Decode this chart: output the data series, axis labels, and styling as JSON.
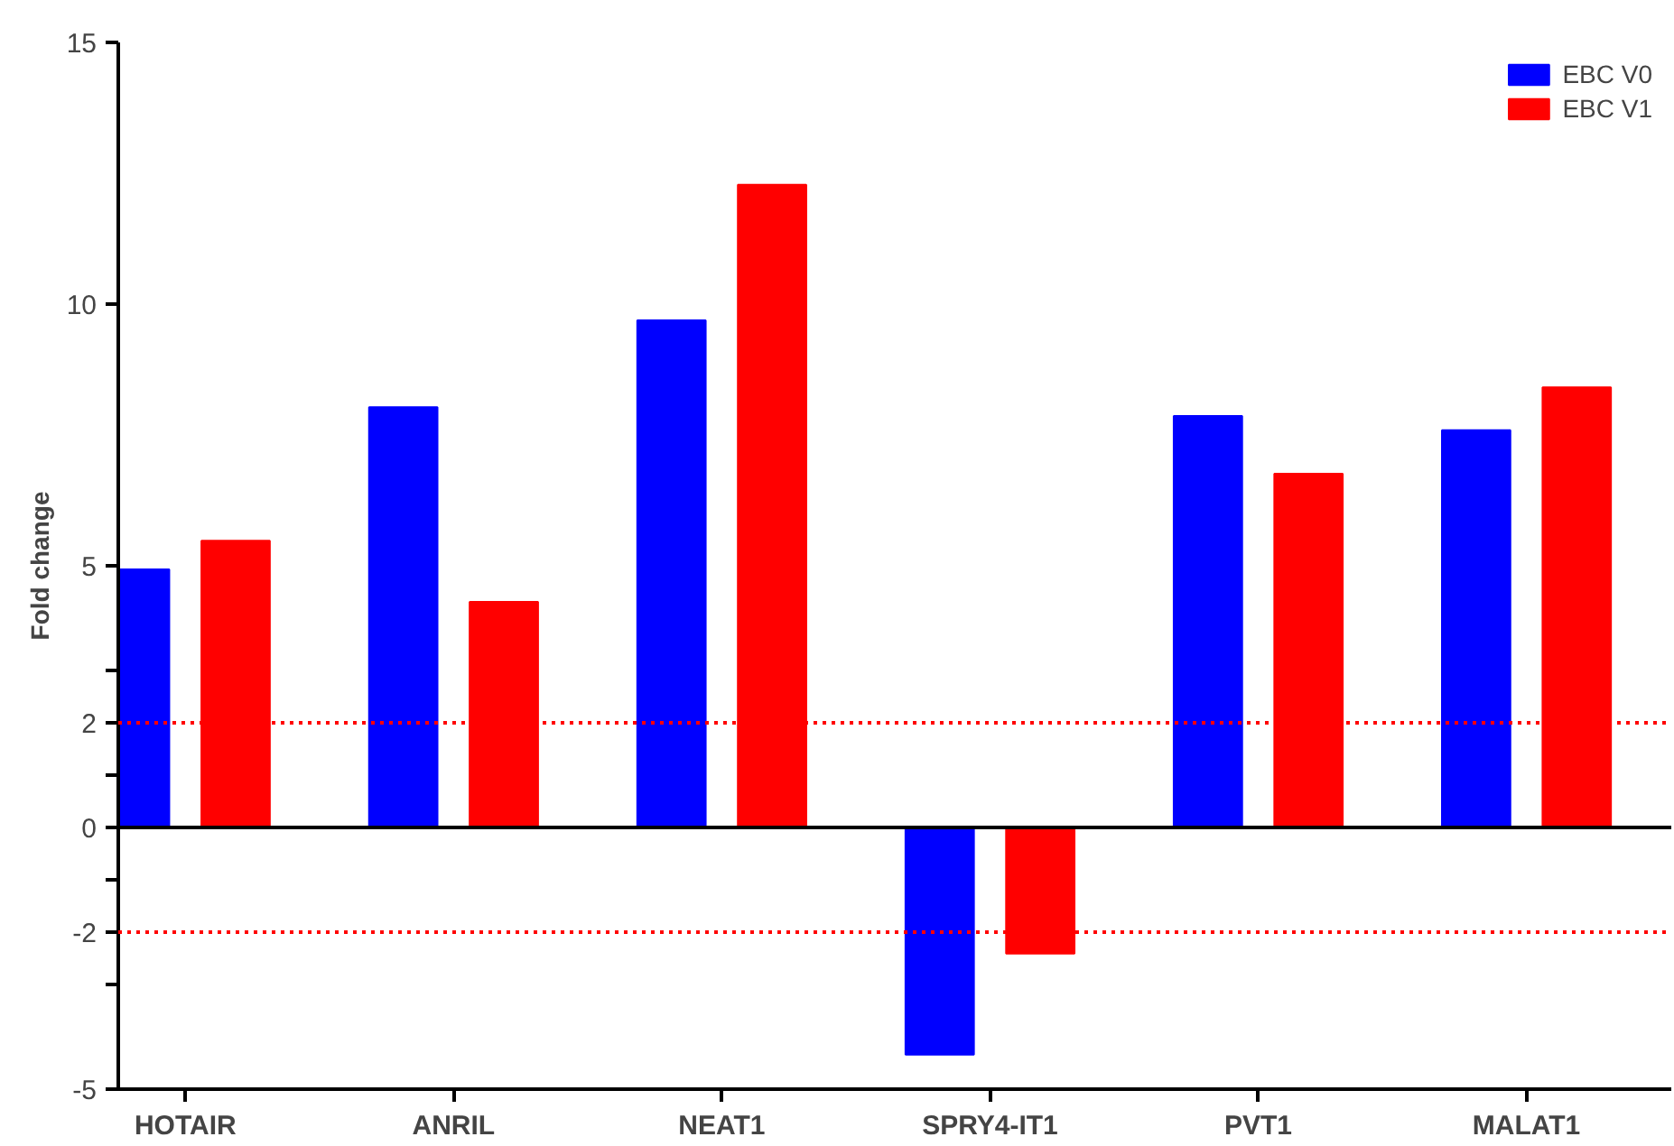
{
  "chart_data": {
    "type": "bar",
    "ylabel": "Fold change",
    "categories": [
      "HOTAIR",
      "ANRIL",
      "NEAT1",
      "SPRY4-IT1",
      "PVT1",
      "MALAT1"
    ],
    "series": [
      {
        "name": "EBC V0",
        "color": "#0000ff",
        "values": [
          4.93,
          8.03,
          9.69,
          -4.34,
          7.86,
          7.59
        ]
      },
      {
        "name": "EBC V1",
        "color": "#ff0000",
        "values": [
          5.48,
          4.31,
          12.28,
          -2.41,
          6.76,
          8.41
        ]
      }
    ],
    "ylim": [
      -5,
      15
    ],
    "yticks": [
      15,
      10,
      5,
      {
        "value": 3,
        "label": null
      },
      2,
      {
        "value": 1,
        "label": null
      },
      0,
      {
        "value": -1,
        "label": null
      },
      -2,
      {
        "value": -3,
        "label": null
      },
      -5
    ],
    "ref_lines": [
      {
        "axis": "y",
        "value": 2,
        "color": "#ff0000",
        "line_style": "dotted"
      },
      {
        "axis": "y",
        "value": -2,
        "color": "#ff0000",
        "line_style": "dotted"
      },
      {
        "axis": "y",
        "value": 0,
        "color": "#000000",
        "line_style": "solid"
      }
    ],
    "grid": false,
    "legend": "top right"
  }
}
